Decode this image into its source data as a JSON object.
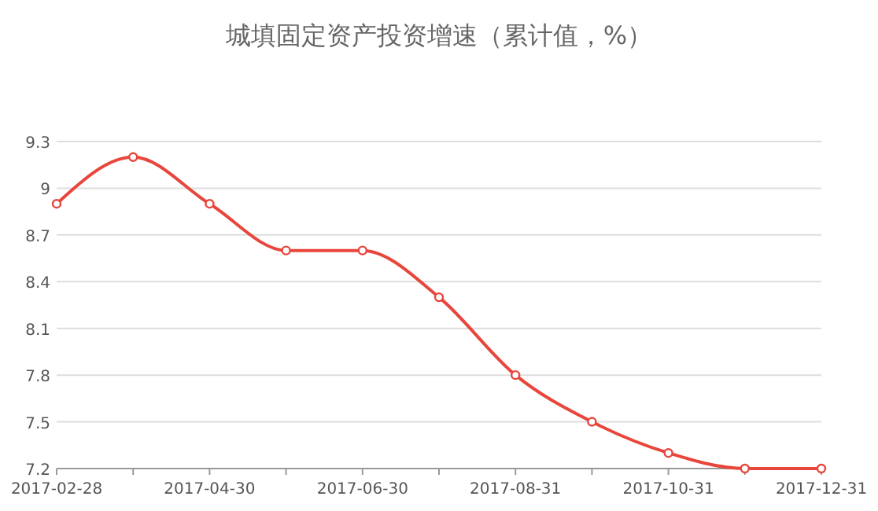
{
  "chart_data": {
    "type": "line",
    "title": "城填固定资产投资增速（累计值，%）",
    "categories": [
      "2017-02-28",
      null,
      "2017-04-30",
      null,
      "2017-06-30",
      null,
      "2017-08-31",
      null,
      "2017-10-31",
      null,
      "2017-12-31"
    ],
    "series": [
      {
        "color": "#e8463c",
        "values": [
          8.9,
          9.2,
          8.9,
          8.6,
          8.6,
          8.3,
          7.8,
          7.5,
          7.3,
          7.2,
          7.2
        ]
      }
    ],
    "ylim": [
      7.2,
      9.3
    ],
    "yticks": [
      7.2,
      7.5,
      7.8,
      8.1,
      8.4,
      8.7,
      {
        "value": 9,
        "label": "9"
      },
      9.3
    ],
    "grid": "y",
    "marker": "circle",
    "line_style": "solid"
  }
}
